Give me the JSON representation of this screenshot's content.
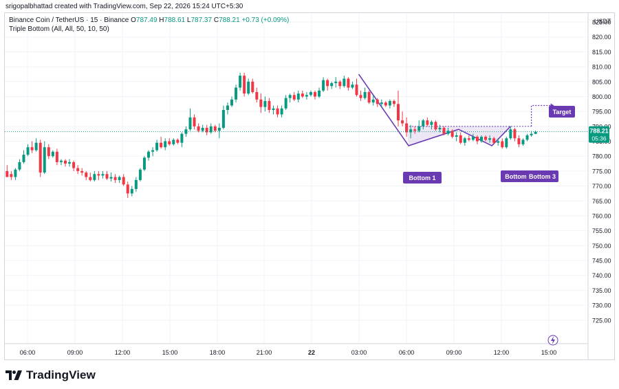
{
  "header": {
    "creator": "srigopalbhattad created with TradingView.com, Sep 22, 2026 15:24 UTC+5:30"
  },
  "legend": {
    "symbol": "Binance Coin / TetherUS · 15 · Binance",
    "o_label": "O",
    "o": "787.49",
    "h_label": "H",
    "h": "788.61",
    "l_label": "L",
    "l": "787.37",
    "c_label": "C",
    "c": "788.21",
    "change": "+0.73 (+0.09%)",
    "indicator": "Triple Bottom (All, All, 50, 10, 50)"
  },
  "price_axis": {
    "currency": "USDT",
    "last_price": "788.21",
    "countdown": "05:36"
  },
  "pattern_labels": {
    "bottom1": "Bottom 1",
    "bottom2": "Bottom",
    "bottom3": "Bottom 3",
    "target": "Target"
  },
  "brand": {
    "name": "TradingView"
  },
  "colors": {
    "up": "#089981",
    "down": "#f23645",
    "pattern": "#6a3ab2",
    "grid": "#f0f3fa"
  },
  "chart_data": {
    "type": "candlestick",
    "ylim": [
      722,
      828
    ],
    "y_ticks": [
      "825.00",
      "820.00",
      "815.00",
      "810.00",
      "805.00",
      "800.00",
      "795.00",
      "790.00",
      "785.00",
      "780.00",
      "775.00",
      "770.00",
      "765.00",
      "760.00",
      "755.00",
      "750.00",
      "745.00",
      "740.00",
      "735.00",
      "730.00",
      "725.00"
    ],
    "x_ticks": [
      "06:00",
      "09:00",
      "12:00",
      "15:00",
      "18:00",
      "21:00",
      "22",
      "03:00",
      "06:00",
      "09:00",
      "12:00",
      "15:00"
    ],
    "candles": [
      [
        775.0,
        777.0,
        774.0,
        773.0
      ],
      [
        774.0,
        775.0,
        772.0,
        773.0
      ],
      [
        773.0,
        776.0,
        772.0,
        775.5
      ],
      [
        775.5,
        779.0,
        775.0,
        778.0
      ],
      [
        778.0,
        782.0,
        777.5,
        780.5
      ],
      [
        780.5,
        784.0,
        780.0,
        783.0
      ],
      [
        783.0,
        785.0,
        781.0,
        782.0
      ],
      [
        782.0,
        786.0,
        781.5,
        784.5
      ],
      [
        784.5,
        785.5,
        773.0,
        774.5
      ],
      [
        774.5,
        785.0,
        774.0,
        783.0
      ],
      [
        783.0,
        784.0,
        779.0,
        780.0
      ],
      [
        780.0,
        782.0,
        779.5,
        781.5
      ],
      [
        781.5,
        782.5,
        777.0,
        778.0
      ],
      [
        778.0,
        779.0,
        777.0,
        778.5
      ],
      [
        778.5,
        779.0,
        776.5,
        777.5
      ],
      [
        777.5,
        779.0,
        776.5,
        778.0
      ],
      [
        778.0,
        778.5,
        775.0,
        776.0
      ],
      [
        776.0,
        777.0,
        774.0,
        775.0
      ],
      [
        775.0,
        776.0,
        773.5,
        774.5
      ],
      [
        774.5,
        775.0,
        772.0,
        773.0
      ],
      [
        773.0,
        774.5,
        771.5,
        772.0
      ],
      [
        772.0,
        775.0,
        771.5,
        774.0
      ],
      [
        774.0,
        775.0,
        772.0,
        773.5
      ],
      [
        773.5,
        775.0,
        772.5,
        774.0
      ],
      [
        774.0,
        775.0,
        772.0,
        772.5
      ],
      [
        772.5,
        774.5,
        771.5,
        773.0
      ],
      [
        773.0,
        774.0,
        771.0,
        772.0
      ],
      [
        772.0,
        773.5,
        771.0,
        773.0
      ],
      [
        773.0,
        774.0,
        770.0,
        770.5
      ],
      [
        770.5,
        771.5,
        766.0,
        767.5
      ],
      [
        767.5,
        770.0,
        766.5,
        769.0
      ],
      [
        769.0,
        773.0,
        768.0,
        772.0
      ],
      [
        772.0,
        776.0,
        771.5,
        775.5
      ],
      [
        775.5,
        780.0,
        775.0,
        779.5
      ],
      [
        779.5,
        782.0,
        778.5,
        781.5
      ],
      [
        781.5,
        783.0,
        780.0,
        782.0
      ],
      [
        782.0,
        785.5,
        781.5,
        784.5
      ],
      [
        784.5,
        786.5,
        782.5,
        783.0
      ],
      [
        783.0,
        786.0,
        782.0,
        785.0
      ],
      [
        785.0,
        786.0,
        783.5,
        784.0
      ],
      [
        784.0,
        786.0,
        783.5,
        785.5
      ],
      [
        785.5,
        786.0,
        784.0,
        784.5
      ],
      [
        784.5,
        788.0,
        783.0,
        787.5
      ],
      [
        787.5,
        790.0,
        786.5,
        789.0
      ],
      [
        789.0,
        796.0,
        788.5,
        793.0
      ],
      [
        793.0,
        794.0,
        789.0,
        790.0
      ],
      [
        790.0,
        791.0,
        788.0,
        788.5
      ],
      [
        788.5,
        790.5,
        788.0,
        789.5
      ],
      [
        789.5,
        790.5,
        787.0,
        788.0
      ],
      [
        788.0,
        791.0,
        787.5,
        790.0
      ],
      [
        790.0,
        790.5,
        788.0,
        788.5
      ],
      [
        788.5,
        791.0,
        786.0,
        789.5
      ],
      [
        789.5,
        797.0,
        789.0,
        795.5
      ],
      [
        795.5,
        798.0,
        794.0,
        797.0
      ],
      [
        797.0,
        800.0,
        796.5,
        799.0
      ],
      [
        799.0,
        804.0,
        798.0,
        803.0
      ],
      [
        803.0,
        808.0,
        802.0,
        807.0
      ],
      [
        807.0,
        808.0,
        800.0,
        801.0
      ],
      [
        801.0,
        806.0,
        800.5,
        805.0
      ],
      [
        805.0,
        806.0,
        801.0,
        801.5
      ],
      [
        801.5,
        803.0,
        798.0,
        799.0
      ],
      [
        799.0,
        801.0,
        794.5,
        796.5
      ],
      [
        796.5,
        800.0,
        795.0,
        798.5
      ],
      [
        798.5,
        799.5,
        794.5,
        795.5
      ],
      [
        795.5,
        797.0,
        794.0,
        796.0
      ],
      [
        796.0,
        797.0,
        793.0,
        794.0
      ],
      [
        794.0,
        797.0,
        793.0,
        796.0
      ],
      [
        796.0,
        800.5,
        795.5,
        799.5
      ],
      [
        799.5,
        801.0,
        798.0,
        800.5
      ],
      [
        800.5,
        801.5,
        798.5,
        799.0
      ],
      [
        799.0,
        802.0,
        798.0,
        801.0
      ],
      [
        801.0,
        802.0,
        799.5,
        800.0
      ],
      [
        800.0,
        801.5,
        799.0,
        800.5
      ],
      [
        800.5,
        802.0,
        800.0,
        801.5
      ],
      [
        801.5,
        802.0,
        799.0,
        800.0
      ],
      [
        800.0,
        803.0,
        799.5,
        802.0
      ],
      [
        802.0,
        806.5,
        801.5,
        805.5
      ],
      [
        805.5,
        806.0,
        802.0,
        803.5
      ],
      [
        803.5,
        805.0,
        802.5,
        804.5
      ],
      [
        804.5,
        806.5,
        803.0,
        805.0
      ],
      [
        805.0,
        805.5,
        802.5,
        803.5
      ],
      [
        803.5,
        807.0,
        803.0,
        806.0
      ],
      [
        806.0,
        806.5,
        802.0,
        803.0
      ],
      [
        803.0,
        805.0,
        802.5,
        804.0
      ],
      [
        804.0,
        806.0,
        800.0,
        800.5
      ],
      [
        800.5,
        802.0,
        798.5,
        799.5
      ],
      [
        799.5,
        803.0,
        799.0,
        801.5
      ],
      [
        801.5,
        802.0,
        797.5,
        798.0
      ],
      [
        798.0,
        800.5,
        797.0,
        799.0
      ],
      [
        799.0,
        799.5,
        796.5,
        797.5
      ],
      [
        797.5,
        799.0,
        796.5,
        798.0
      ],
      [
        798.0,
        798.5,
        796.5,
        797.0
      ],
      [
        797.0,
        799.0,
        796.0,
        798.5
      ],
      [
        798.5,
        799.0,
        796.5,
        797.5
      ],
      [
        797.5,
        802.0,
        790.0,
        792.0
      ],
      [
        792.0,
        795.0,
        790.0,
        791.0
      ],
      [
        791.0,
        793.0,
        786.5,
        788.0
      ],
      [
        788.0,
        790.5,
        786.0,
        789.0
      ],
      [
        789.0,
        790.0,
        787.5,
        788.5
      ],
      [
        788.5,
        792.0,
        788.0,
        790.0
      ],
      [
        790.0,
        792.5,
        789.0,
        792.0
      ],
      [
        792.0,
        793.0,
        790.0,
        790.5
      ],
      [
        790.5,
        792.0,
        789.0,
        791.5
      ],
      [
        791.5,
        792.0,
        788.5,
        789.0
      ],
      [
        789.0,
        790.5,
        788.0,
        789.5
      ],
      [
        789.5,
        790.0,
        787.0,
        787.5
      ],
      [
        787.5,
        789.5,
        787.0,
        788.5
      ],
      [
        788.5,
        789.0,
        786.0,
        786.5
      ],
      [
        786.5,
        788.0,
        785.0,
        787.0
      ],
      [
        787.0,
        788.0,
        784.0,
        784.5
      ],
      [
        784.5,
        786.5,
        783.5,
        786.0
      ],
      [
        786.0,
        787.0,
        785.0,
        785.5
      ],
      [
        785.5,
        787.5,
        785.0,
        786.5
      ],
      [
        786.5,
        787.0,
        784.0,
        785.0
      ],
      [
        785.0,
        787.0,
        784.5,
        786.5
      ],
      [
        786.5,
        787.0,
        785.0,
        785.5
      ],
      [
        785.5,
        787.0,
        784.5,
        786.0
      ],
      [
        786.0,
        786.5,
        784.0,
        784.5
      ],
      [
        784.5,
        786.0,
        783.5,
        785.0
      ],
      [
        785.0,
        786.0,
        782.5,
        783.0
      ],
      [
        783.0,
        786.5,
        782.5,
        786.0
      ],
      [
        786.0,
        790.0,
        785.5,
        789.0
      ],
      [
        789.0,
        789.5,
        785.0,
        786.0
      ],
      [
        786.0,
        787.0,
        783.0,
        784.0
      ],
      [
        784.0,
        786.0,
        783.5,
        785.5
      ],
      [
        785.5,
        787.5,
        785.0,
        787.0
      ],
      [
        787.0,
        788.5,
        786.5,
        787.5
      ],
      [
        787.49,
        788.61,
        787.37,
        788.21
      ]
    ],
    "pattern_points": [
      {
        "candle": 84.5,
        "y": 807.5
      },
      {
        "candle": 96.5,
        "y": 783.5
      },
      {
        "candle": 108.5,
        "y": 789.0
      },
      {
        "candle": 116.5,
        "y": 783.5
      },
      {
        "candle": 121.0,
        "y": 790.0
      }
    ],
    "neckline": {
      "from_candle": 96.0,
      "to_candle": 126.0,
      "y": 790.0
    },
    "target_y": 797.0,
    "last_price": 788.21
  }
}
